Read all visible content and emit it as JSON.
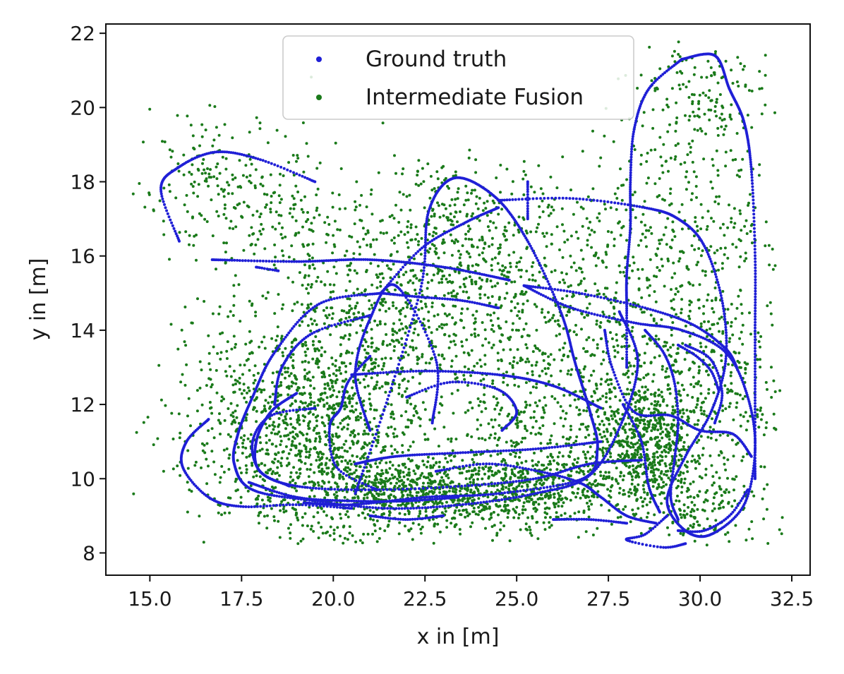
{
  "chart_data": {
    "type": "scatter",
    "xlabel": "x in [m]",
    "ylabel": "y in [m]",
    "xlim": [
      13.8,
      33.0
    ],
    "ylim": [
      7.4,
      22.25
    ],
    "x_ticks": [
      "15.0",
      "17.5",
      "20.0",
      "22.5",
      "25.0",
      "27.5",
      "30.0",
      "32.5"
    ],
    "y_ticks": [
      "8",
      "10",
      "12",
      "14",
      "16",
      "18",
      "20",
      "22"
    ],
    "grid": false,
    "legend_position": "top-center",
    "series": [
      {
        "name": "Ground truth",
        "color": "#1f1fd6",
        "marker_size": 2,
        "trajectory_paths": [
          [
            [
              19.5,
              18.0
            ],
            [
              18.0,
              18.6
            ],
            [
              16.8,
              18.8
            ],
            [
              15.8,
              18.4
            ],
            [
              15.3,
              17.8
            ],
            [
              15.8,
              16.4
            ]
          ],
          [
            [
              16.7,
              15.9
            ],
            [
              19.0,
              15.85
            ],
            [
              21.0,
              15.9
            ],
            [
              23.0,
              15.7
            ],
            [
              24.8,
              15.35
            ]
          ],
          [
            [
              21.0,
              11.3
            ],
            [
              20.6,
              12.8
            ],
            [
              21.0,
              14.3
            ],
            [
              21.7,
              15.2
            ],
            [
              22.8,
              13.2
            ],
            [
              22.7,
              11.5
            ]
          ],
          [
            [
              21.3,
              15.0
            ],
            [
              22.4,
              16.2
            ],
            [
              23.6,
              16.9
            ],
            [
              24.5,
              17.3
            ]
          ],
          [
            [
              21.3,
              15.0
            ],
            [
              19.6,
              14.7
            ],
            [
              18.4,
              13.4
            ],
            [
              17.8,
              12.2
            ],
            [
              17.4,
              11.2
            ],
            [
              17.3,
              10.4
            ],
            [
              17.8,
              9.7
            ],
            [
              19.5,
              9.4
            ],
            [
              21.5,
              9.2
            ],
            [
              23.5,
              9.3
            ],
            [
              25.5,
              9.6
            ],
            [
              27.0,
              10.1
            ],
            [
              27.9,
              11.6
            ],
            [
              28.3,
              13.2
            ],
            [
              27.8,
              14.5
            ]
          ],
          [
            [
              20.6,
              9.6
            ],
            [
              21.5,
              12.2
            ],
            [
              22.4,
              15.2
            ],
            [
              22.6,
              17.2
            ],
            [
              23.3,
              18.1
            ],
            [
              24.4,
              17.6
            ],
            [
              25.3,
              16.4
            ],
            [
              26.2,
              14.5
            ],
            [
              26.6,
              13.1
            ],
            [
              27.0,
              11.8
            ],
            [
              27.2,
              10.8
            ],
            [
              26.8,
              10.0
            ],
            [
              24.5,
              9.6
            ],
            [
              22.5,
              9.5
            ],
            [
              20.5,
              9.3
            ],
            [
              19.2,
              9.35
            ]
          ],
          [
            [
              24.5,
              17.5
            ],
            [
              26.5,
              17.55
            ],
            [
              28.5,
              17.3
            ],
            [
              29.4,
              17.0
            ],
            [
              30.1,
              16.3
            ],
            [
              30.6,
              14.8
            ],
            [
              30.7,
              13.2
            ],
            [
              30.3,
              11.8
            ],
            [
              29.6,
              10.6
            ],
            [
              29.1,
              9.4
            ],
            [
              29.6,
              8.6
            ],
            [
              30.3,
              8.5
            ],
            [
              31.2,
              9.3
            ],
            [
              31.5,
              10.8
            ],
            [
              31.3,
              12.2
            ],
            [
              30.7,
              13.4
            ],
            [
              29.5,
              14.0
            ],
            [
              28.2,
              14.2
            ],
            [
              26.5,
              14.6
            ],
            [
              25.2,
              15.2
            ]
          ],
          [
            [
              29.1,
              9.0
            ],
            [
              28.5,
              8.5
            ],
            [
              28.0,
              8.35
            ],
            [
              29.0,
              8.15
            ],
            [
              29.6,
              8.25
            ]
          ],
          [
            [
              21.3,
              15.0
            ],
            [
              22.3,
              14.9
            ],
            [
              23.5,
              14.8
            ],
            [
              24.5,
              14.6
            ]
          ],
          [
            [
              25.2,
              15.2
            ],
            [
              26.7,
              15.0
            ],
            [
              28.5,
              14.6
            ],
            [
              29.8,
              14.15
            ],
            [
              30.7,
              13.5
            ],
            [
              31.0,
              13.0
            ]
          ],
          [
            [
              16.6,
              11.6
            ],
            [
              16.0,
              11.0
            ],
            [
              15.9,
              10.3
            ],
            [
              16.6,
              9.5
            ],
            [
              17.5,
              9.25
            ],
            [
              19.0,
              9.3
            ],
            [
              20.5,
              9.2
            ]
          ],
          [
            [
              18.4,
              12.0
            ],
            [
              18.6,
              13.0
            ],
            [
              19.4,
              13.9
            ],
            [
              21.0,
              14.4
            ]
          ],
          [
            [
              19.0,
              12.3
            ],
            [
              18.3,
              11.8
            ],
            [
              17.9,
              11.0
            ],
            [
              18.0,
              10.2
            ],
            [
              19.0,
              9.8
            ],
            [
              21.0,
              9.7
            ],
            [
              23.5,
              9.8
            ],
            [
              25.5,
              10.0
            ],
            [
              27.0,
              10.4
            ],
            [
              28.4,
              10.5
            ]
          ],
          [
            [
              19.5,
              11.9
            ],
            [
              18.3,
              11.7
            ],
            [
              17.8,
              11.0
            ],
            [
              18.0,
              10.2
            ],
            [
              18.8,
              9.8
            ]
          ],
          [
            [
              20.5,
              12.8
            ],
            [
              22.5,
              12.9
            ],
            [
              24.5,
              12.8
            ],
            [
              26.0,
              12.5
            ],
            [
              27.3,
              11.9
            ]
          ],
          [
            [
              22.0,
              12.2
            ],
            [
              23.2,
              12.6
            ],
            [
              24.5,
              12.4
            ],
            [
              25.0,
              11.8
            ],
            [
              24.6,
              11.3
            ]
          ],
          [
            [
              17.7,
              9.9
            ],
            [
              19.0,
              9.5
            ],
            [
              20.5,
              9.4
            ],
            [
              22.0,
              9.4
            ],
            [
              23.4,
              9.5
            ]
          ],
          [
            [
              27.4,
              14.0
            ],
            [
              27.6,
              13.0
            ],
            [
              28.2,
              11.8
            ],
            [
              29.2,
              11.7
            ],
            [
              30.0,
              11.3
            ],
            [
              30.9,
              11.2
            ],
            [
              31.4,
              10.6
            ]
          ],
          [
            [
              27.9,
              12.0
            ],
            [
              28.4,
              11.0
            ],
            [
              28.6,
              9.8
            ],
            [
              28.9,
              9.1
            ]
          ],
          [
            [
              29.6,
              13.6
            ],
            [
              30.3,
              13.2
            ],
            [
              30.6,
              12.3
            ],
            [
              30.4,
              11.5
            ]
          ],
          [
            [
              21.0,
              13.3
            ],
            [
              20.4,
              12.6
            ],
            [
              20.2,
              11.9
            ],
            [
              19.9,
              11.4
            ],
            [
              20.1,
              10.3
            ],
            [
              21.2,
              9.7
            ]
          ],
          [
            [
              20.6,
              10.4
            ],
            [
              21.7,
              10.6
            ],
            [
              23.5,
              10.7
            ],
            [
              25.5,
              10.8
            ],
            [
              27.3,
              11.0
            ]
          ],
          [
            [
              22.8,
              10.2
            ],
            [
              24.2,
              10.4
            ],
            [
              25.6,
              10.2
            ],
            [
              26.7,
              9.9
            ],
            [
              27.3,
              9.5
            ],
            [
              28.0,
              9.0
            ],
            [
              28.8,
              8.8
            ]
          ],
          [
            [
              29.4,
              13.6
            ],
            [
              29.9,
              13.3
            ],
            [
              30.3,
              12.9
            ],
            [
              30.5,
              12.4
            ]
          ],
          [
            [
              28.5,
              14.0
            ],
            [
              29.0,
              13.4
            ],
            [
              29.3,
              12.6
            ],
            [
              29.4,
              11.5
            ],
            [
              29.3,
              10.5
            ],
            [
              29.2,
              9.5
            ],
            [
              29.4,
              8.9
            ]
          ],
          [
            [
              29.5,
              21.3
            ],
            [
              30.4,
              21.4
            ],
            [
              30.8,
              20.5
            ],
            [
              31.2,
              19.6
            ],
            [
              31.4,
              18.3
            ],
            [
              31.5,
              16.0
            ],
            [
              31.5,
              14.0
            ],
            [
              31.5,
              12.0
            ],
            [
              31.5,
              10.0
            ]
          ],
          [
            [
              29.5,
              21.3
            ],
            [
              28.6,
              20.5
            ],
            [
              28.2,
              19.4
            ],
            [
              28.1,
              18.0
            ],
            [
              28.1,
              16.8
            ],
            [
              28.0,
              15.5
            ],
            [
              28.0,
              14.5
            ],
            [
              28.0,
              13.0
            ]
          ],
          [
            [
              25.3,
              18.0
            ],
            [
              25.3,
              17.0
            ]
          ],
          [
            [
              17.9,
              15.7
            ],
            [
              18.5,
              15.6
            ]
          ],
          [
            [
              21.0,
              9.0
            ],
            [
              22.0,
              8.9
            ],
            [
              23.0,
              9.0
            ]
          ],
          [
            [
              26.0,
              8.9
            ],
            [
              27.0,
              8.9
            ],
            [
              28.0,
              8.8
            ]
          ],
          [
            [
              31.3,
              9.7
            ],
            [
              30.8,
              9.0
            ],
            [
              30.1,
              8.6
            ],
            [
              29.4,
              8.6
            ]
          ]
        ]
      },
      {
        "name": "Intermediate Fusion",
        "color": "#1a7a1a",
        "marker_size": 2,
        "clusters": [
          {
            "cx": 19.7,
            "cy": 11.3,
            "sx": 1.4,
            "sy": 1.5,
            "n": 1150
          },
          {
            "cx": 22.8,
            "cy": 9.6,
            "sx": 2.0,
            "sy": 0.5,
            "n": 900
          },
          {
            "cx": 25.6,
            "cy": 9.9,
            "sx": 1.3,
            "sy": 0.5,
            "n": 300
          },
          {
            "cx": 28.5,
            "cy": 10.9,
            "sx": 0.8,
            "sy": 0.9,
            "n": 750
          },
          {
            "cx": 27.5,
            "cy": 13.3,
            "sx": 1.6,
            "sy": 1.6,
            "n": 450
          },
          {
            "cx": 21.6,
            "cy": 14.5,
            "sx": 1.5,
            "sy": 1.3,
            "n": 450
          },
          {
            "cx": 24.4,
            "cy": 16.0,
            "sx": 1.7,
            "sy": 1.2,
            "n": 380
          },
          {
            "cx": 18.2,
            "cy": 17.2,
            "sx": 1.5,
            "sy": 1.0,
            "n": 220
          },
          {
            "cx": 29.9,
            "cy": 20.1,
            "sx": 0.9,
            "sy": 0.8,
            "n": 170
          },
          {
            "cx": 29.4,
            "cy": 16.5,
            "sx": 1.5,
            "sy": 1.6,
            "n": 330
          },
          {
            "cx": 30.6,
            "cy": 12.5,
            "sx": 0.9,
            "sy": 1.5,
            "n": 230
          },
          {
            "cx": 17.0,
            "cy": 12.0,
            "sx": 1.2,
            "sy": 1.5,
            "n": 160
          },
          {
            "cx": 24.5,
            "cy": 12.8,
            "sx": 1.8,
            "sy": 1.4,
            "n": 220
          },
          {
            "cx": 23.0,
            "cy": 17.3,
            "sx": 0.9,
            "sy": 0.8,
            "n": 120
          },
          {
            "cx": 16.5,
            "cy": 18.4,
            "sx": 0.9,
            "sy": 0.8,
            "n": 90
          },
          {
            "cx": 30.2,
            "cy": 9.2,
            "sx": 0.8,
            "sy": 0.5,
            "n": 130
          },
          {
            "cx": 24.8,
            "cy": 11.3,
            "sx": 0.6,
            "sy": 0.5,
            "n": 60
          }
        ]
      }
    ]
  }
}
